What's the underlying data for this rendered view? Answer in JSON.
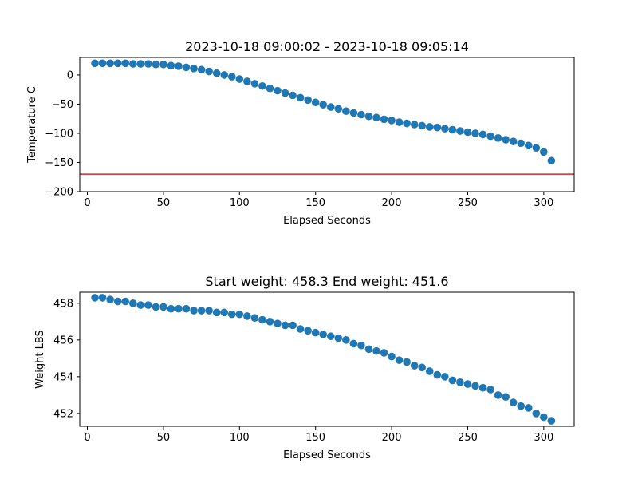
{
  "chart_data": [
    {
      "type": "scatter",
      "title": "2023-10-18 09:00:02 - 2023-10-18 09:05:14",
      "xlabel": "Elapsed Seconds",
      "ylabel": "Temperature C",
      "xlim": [
        -5,
        320
      ],
      "ylim": [
        -200,
        30
      ],
      "xticks": [
        0,
        50,
        100,
        150,
        200,
        250,
        300
      ],
      "yticks": [
        0,
        -50,
        -100,
        -150,
        -200
      ],
      "grid": false,
      "marker_color": "#1f77b4",
      "reference_line": {
        "y": -170,
        "color": "#d62728"
      },
      "series": [
        {
          "x": [
            5,
            10,
            15,
            20,
            25,
            30,
            35,
            40,
            45,
            50,
            55,
            60,
            65,
            70,
            75,
            80,
            85,
            90,
            95,
            100,
            105,
            110,
            115,
            120,
            125,
            130,
            135,
            140,
            145,
            150,
            155,
            160,
            165,
            170,
            175,
            180,
            185,
            190,
            195,
            200,
            205,
            210,
            215,
            220,
            225,
            230,
            235,
            240,
            245,
            250,
            255,
            260,
            265,
            270,
            275,
            280,
            285,
            290,
            295,
            300,
            305
          ],
          "y": [
            20,
            20,
            20,
            20,
            20,
            19,
            19,
            19,
            18,
            18,
            16,
            15,
            13,
            11,
            9,
            6,
            3,
            0,
            -3,
            -7,
            -11,
            -15,
            -19,
            -23,
            -27,
            -31,
            -35,
            -39,
            -43,
            -47,
            -51,
            -55,
            -58,
            -62,
            -65,
            -68,
            -71,
            -73,
            -76,
            -78,
            -81,
            -83,
            -85,
            -87,
            -89,
            -90,
            -92,
            -94,
            -96,
            -98,
            -100,
            -102,
            -105,
            -108,
            -111,
            -114,
            -117,
            -121,
            -125,
            -132,
            -147
          ]
        }
      ]
    },
    {
      "type": "scatter",
      "title": "Start weight: 458.3 End weight: 451.6",
      "xlabel": "Elapsed Seconds",
      "ylabel": "Weight LBS",
      "xlim": [
        -5,
        320
      ],
      "ylim": [
        451.3,
        458.6
      ],
      "xticks": [
        0,
        50,
        100,
        150,
        200,
        250,
        300
      ],
      "yticks": [
        452,
        454,
        456,
        458
      ],
      "grid": false,
      "marker_color": "#1f77b4",
      "series": [
        {
          "x": [
            5,
            10,
            15,
            20,
            25,
            30,
            35,
            40,
            45,
            50,
            55,
            60,
            65,
            70,
            75,
            80,
            85,
            90,
            95,
            100,
            105,
            110,
            115,
            120,
            125,
            130,
            135,
            140,
            145,
            150,
            155,
            160,
            165,
            170,
            175,
            180,
            185,
            190,
            195,
            200,
            205,
            210,
            215,
            220,
            225,
            230,
            235,
            240,
            245,
            250,
            255,
            260,
            265,
            270,
            275,
            280,
            285,
            290,
            295,
            300,
            305
          ],
          "y": [
            458.3,
            458.3,
            458.2,
            458.1,
            458.1,
            458.0,
            457.9,
            457.9,
            457.8,
            457.8,
            457.7,
            457.7,
            457.7,
            457.6,
            457.6,
            457.6,
            457.5,
            457.5,
            457.4,
            457.4,
            457.3,
            457.2,
            457.1,
            457.0,
            456.9,
            456.8,
            456.8,
            456.6,
            456.5,
            456.4,
            456.3,
            456.2,
            456.1,
            456.0,
            455.8,
            455.7,
            455.5,
            455.4,
            455.3,
            455.1,
            454.9,
            454.8,
            454.6,
            454.5,
            454.3,
            454.1,
            454.0,
            453.8,
            453.7,
            453.6,
            453.5,
            453.4,
            453.3,
            453.0,
            452.9,
            452.6,
            452.4,
            452.3,
            452.0,
            451.8,
            451.6
          ]
        }
      ]
    }
  ]
}
